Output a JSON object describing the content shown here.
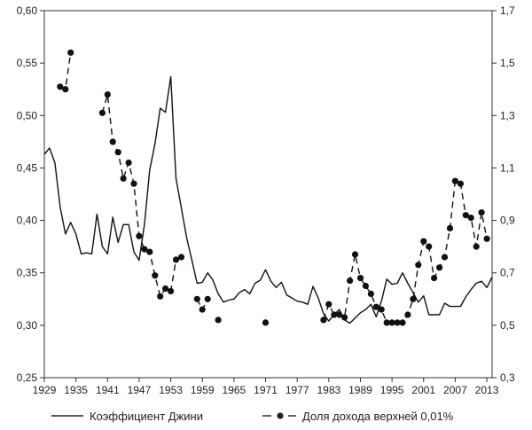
{
  "chart_data": {
    "type": "line",
    "x_ticks": [
      "1929",
      "1935",
      "1941",
      "1947",
      "1953",
      "1959",
      "1965",
      "1971",
      "1977",
      "1983",
      "1989",
      "1995",
      "2001",
      "2007",
      "2013"
    ],
    "y_left": {
      "lim": [
        0.25,
        0.6
      ],
      "ticks": [
        "0,25",
        "0,30",
        "0,35",
        "0,40",
        "0,45",
        "0,50",
        "0,55",
        "0,60"
      ]
    },
    "y_right": {
      "lim": [
        0.3,
        1.7
      ],
      "ticks": [
        "0,3",
        "0,5",
        "0,7",
        "0,9",
        "1,1",
        "1,3",
        "1,5",
        "1,7"
      ]
    },
    "xlim": [
      1929,
      2014
    ],
    "grid": false,
    "legend_position": "bottom",
    "series": [
      {
        "name": "Коэффициент Джини",
        "axis": "left",
        "style": "solid",
        "x": [
          1929,
          1930,
          1931,
          1932,
          1933,
          1934,
          1935,
          1936,
          1937,
          1938,
          1939,
          1940,
          1941,
          1942,
          1943,
          1944,
          1945,
          1946,
          1947,
          1948,
          1949,
          1950,
          1951,
          1952,
          1953,
          1954,
          1955,
          1956,
          1957,
          1958,
          1959,
          1960,
          1961,
          1962,
          1963,
          1964,
          1965,
          1966,
          1967,
          1968,
          1969,
          1970,
          1971,
          1972,
          1973,
          1974,
          1975,
          1976,
          1977,
          1978,
          1979,
          1980,
          1981,
          1982,
          1983,
          1984,
          1985,
          1986,
          1987,
          1988,
          1989,
          1990,
          1991,
          1992,
          1993,
          1994,
          1995,
          1996,
          1997,
          1998,
          1999,
          2000,
          2001,
          2002,
          2003,
          2004,
          2005,
          2006,
          2007,
          2008,
          2009,
          2010,
          2011,
          2012,
          2013
        ],
        "values": [
          0.463,
          0.469,
          0.455,
          0.413,
          0.387,
          0.398,
          0.387,
          0.368,
          0.369,
          0.368,
          0.406,
          0.375,
          0.368,
          0.403,
          0.379,
          0.396,
          0.396,
          0.37,
          0.362,
          0.396,
          0.448,
          0.473,
          0.507,
          0.503,
          0.537,
          0.44,
          0.412,
          0.384,
          0.362,
          0.34,
          0.341,
          0.35,
          0.343,
          0.33,
          0.322,
          0.324,
          0.325,
          0.331,
          0.334,
          0.33,
          0.34,
          0.343,
          0.353,
          0.342,
          0.336,
          0.341,
          0.329,
          0.326,
          0.323,
          0.322,
          0.32,
          0.337,
          0.326,
          0.311,
          0.304,
          0.31,
          0.315,
          0.305,
          0.302,
          0.307,
          0.312,
          0.315,
          0.32,
          0.308,
          0.323,
          0.344,
          0.339,
          0.34,
          0.35,
          0.34,
          0.331,
          0.322,
          0.328,
          0.31,
          0.31,
          0.31,
          0.321,
          0.318,
          0.318,
          0.318,
          0.327,
          0.334,
          0.34,
          0.342,
          0.336
        ],
        "extra_point": [
          2014,
          0.346
        ]
      },
      {
        "name": "Доля дохода верхней 0,01%",
        "axis": "right",
        "style": "dashed-markers",
        "x": [
          1932,
          1933,
          1934,
          1940,
          1941,
          1942,
          1943,
          1944,
          1945,
          1946,
          1947,
          1948,
          1949,
          1950,
          1951,
          1952,
          1953,
          1954,
          1955,
          1958,
          1959,
          1960,
          1962,
          1971,
          1982,
          1983,
          1984,
          1985,
          1986,
          1987,
          1988,
          1989,
          1990,
          1991,
          1992,
          1993,
          1994,
          1995,
          1996,
          1997,
          1998,
          1999,
          2000,
          2001,
          2002,
          2003,
          2004,
          2005,
          2006,
          2007,
          2008,
          2009,
          2010,
          2011,
          2012,
          2013
        ],
        "values": [
          1.41,
          1.4,
          1.54,
          1.31,
          1.38,
          1.2,
          1.16,
          1.06,
          1.12,
          1.04,
          0.84,
          0.79,
          0.78,
          0.69,
          0.61,
          0.64,
          0.63,
          0.75,
          0.76,
          0.6,
          0.56,
          0.6,
          0.52,
          0.51,
          0.52,
          0.58,
          0.54,
          0.54,
          0.53,
          0.67,
          0.77,
          0.68,
          0.65,
          0.62,
          0.57,
          0.56,
          0.51,
          0.51,
          0.51,
          0.51,
          0.54,
          0.6,
          0.73,
          0.82,
          0.8,
          0.68,
          0.72,
          0.76,
          0.87,
          1.05,
          1.04,
          0.92,
          0.91,
          0.8,
          0.93,
          0.83
        ]
      }
    ]
  }
}
